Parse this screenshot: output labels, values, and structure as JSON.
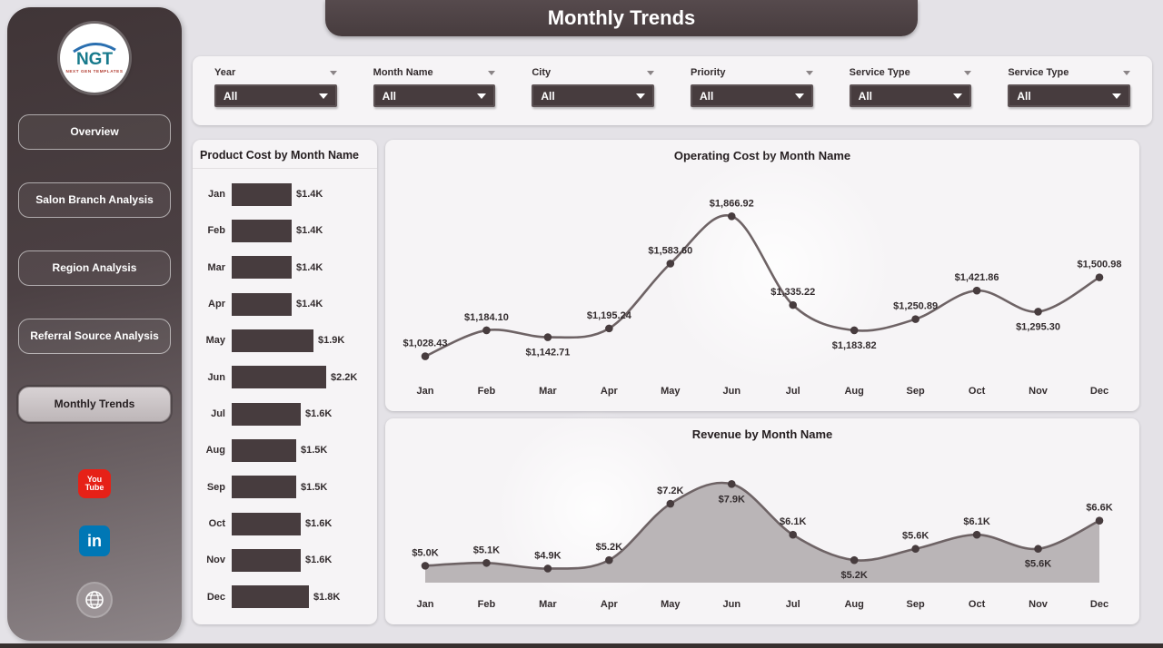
{
  "header": {
    "title": "Monthly Trends"
  },
  "colors": {
    "accent_dark": "#473c3e",
    "page_bg": "#e4e2e7",
    "panel_bg": "#f6f4f6",
    "bar_fill": "#473c3e",
    "line_stroke": "#6e6365",
    "marker_fill": "#473c3e",
    "area_fill": "#bab5b7",
    "active_nav_bg": "#c8c1c3",
    "youtube_red": "#e62117",
    "linkedin_blue": "#0077b5"
  },
  "sidebar": {
    "logo": {
      "text": "NGT",
      "subtext": "NEXT GEN TEMPLATES"
    },
    "nav_items": [
      {
        "label": "Overview",
        "active": false
      },
      {
        "label": "Salon Branch Analysis",
        "active": false
      },
      {
        "label": "Region Analysis",
        "active": false
      },
      {
        "label": "Referral Source Analysis",
        "active": false
      },
      {
        "label": "Monthly Trends",
        "active": true
      }
    ],
    "social": {
      "youtube": {
        "line1": "You",
        "line2": "Tube"
      },
      "linkedin": {
        "text": "in"
      }
    }
  },
  "filters": [
    {
      "label": "Year",
      "value": "All"
    },
    {
      "label": "Month Name",
      "value": "All"
    },
    {
      "label": "City",
      "value": "All"
    },
    {
      "label": "Priority",
      "value": "All"
    },
    {
      "label": "Service Type",
      "value": "All"
    },
    {
      "label": "Service Type",
      "value": "All"
    }
  ],
  "chart_data": [
    {
      "type": "bar",
      "orientation": "horizontal",
      "title": "Product Cost by Month Name",
      "categories": [
        "Jan",
        "Feb",
        "Mar",
        "Apr",
        "May",
        "Jun",
        "Jul",
        "Aug",
        "Sep",
        "Oct",
        "Nov",
        "Dec"
      ],
      "values": [
        1400,
        1400,
        1400,
        1400,
        1900,
        2200,
        1600,
        1500,
        1500,
        1600,
        1600,
        1800
      ],
      "labels": [
        "$1.4K",
        "$1.4K",
        "$1.4K",
        "$1.4K",
        "$1.9K",
        "$2.2K",
        "$1.6K",
        "$1.5K",
        "$1.5K",
        "$1.6K",
        "$1.6K",
        "$1.8K"
      ],
      "xlabel": "",
      "ylabel": "",
      "grid": false,
      "legend": "none"
    },
    {
      "type": "line",
      "title": "Operating Cost by Month Name",
      "categories": [
        "Jan",
        "Feb",
        "Mar",
        "Apr",
        "May",
        "Jun",
        "Jul",
        "Aug",
        "Sep",
        "Oct",
        "Nov",
        "Dec"
      ],
      "values": [
        1028.43,
        1184.1,
        1142.71,
        1195.24,
        1583.6,
        1866.92,
        1335.22,
        1183.82,
        1250.89,
        1421.86,
        1295.3,
        1500.98
      ],
      "labels": [
        "$1,028.43",
        "$1,184.10",
        "$1,142.71",
        "$1,195.24",
        "$1,583.60",
        "$1,866.92",
        "$1,335.22",
        "$1,183.82",
        "$1,250.89",
        "$1,421.86",
        "$1,295.30",
        "$1,500.98"
      ],
      "label_pos": [
        "above",
        "above",
        "below",
        "above",
        "above",
        "above",
        "above",
        "below",
        "above",
        "above",
        "below",
        "above"
      ],
      "ylim": [
        950,
        1950
      ],
      "xlabel": "",
      "ylabel": "",
      "grid": false,
      "legend": "none"
    },
    {
      "type": "area",
      "title": "Revenue by Month Name",
      "categories": [
        "Jan",
        "Feb",
        "Mar",
        "Apr",
        "May",
        "Jun",
        "Jul",
        "Aug",
        "Sep",
        "Oct",
        "Nov",
        "Dec"
      ],
      "values": [
        5000,
        5100,
        4900,
        5200,
        7200,
        7900,
        6100,
        5200,
        5600,
        6100,
        5600,
        6600
      ],
      "labels": [
        "$5.0K",
        "$5.1K",
        "$4.9K",
        "$5.2K",
        "$7.2K",
        "$7.9K",
        "$6.1K",
        "$5.2K",
        "$5.6K",
        "$6.1K",
        "$5.6K",
        "$6.6K"
      ],
      "label_pos": [
        "above",
        "above",
        "above",
        "above",
        "above",
        "below",
        "above",
        "below",
        "above",
        "above",
        "below",
        "above"
      ],
      "ylim": [
        4400,
        8200
      ],
      "xlabel": "",
      "ylabel": "",
      "grid": false,
      "legend": "none"
    }
  ]
}
